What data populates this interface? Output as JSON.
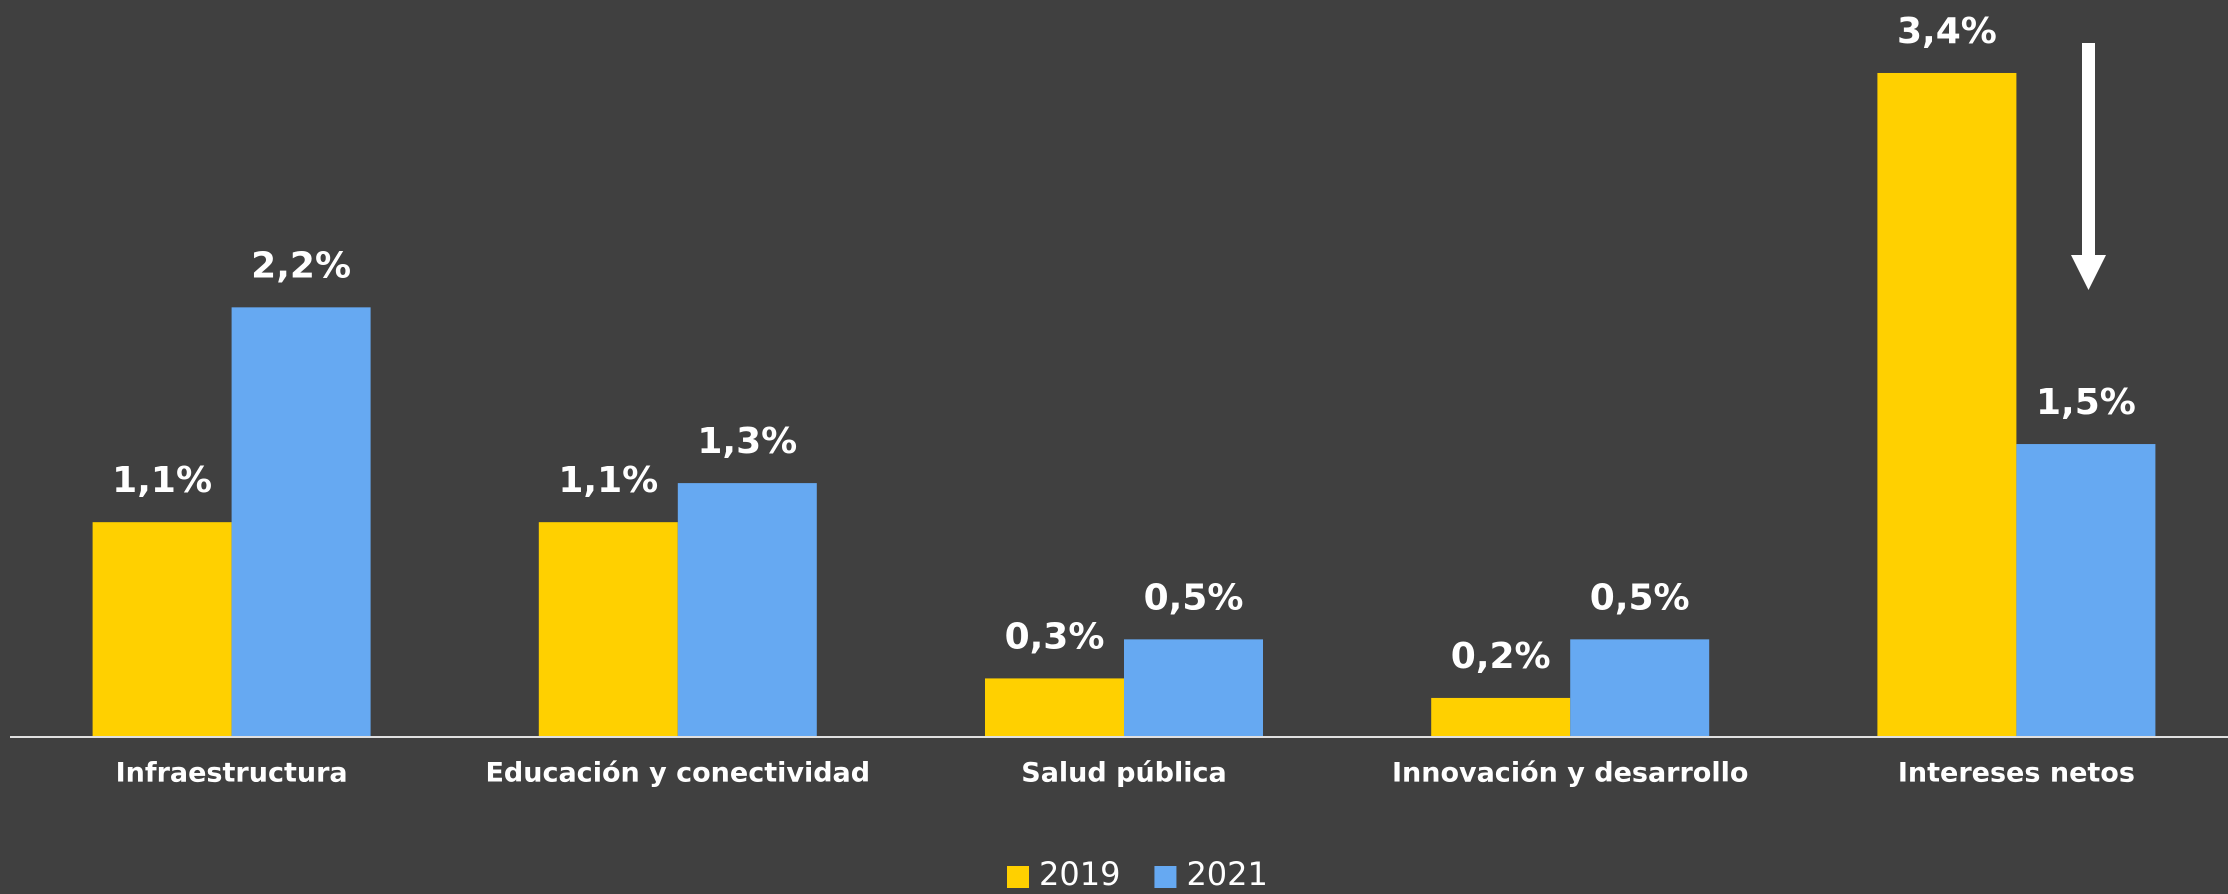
{
  "chart_data": {
    "type": "bar",
    "categories": [
      "Infraestructura",
      "Educación y conectividad",
      "Salud pública",
      "Innovación y desarrollo",
      "Intereses netos"
    ],
    "series": [
      {
        "name": "2019",
        "color": "#FFD000",
        "values": [
          1.1,
          1.1,
          0.3,
          0.2,
          3.4
        ],
        "value_labels": [
          "1,1%",
          "1,1%",
          "0,3%",
          "0,2%",
          "3,4%"
        ]
      },
      {
        "name": "2021",
        "color": "#66A9F2",
        "values": [
          2.2,
          1.3,
          0.5,
          0.5,
          1.5
        ],
        "value_labels": [
          "2,2%",
          "1,3%",
          "0,5%",
          "0,5%",
          "1,5%"
        ]
      }
    ]
  }
}
